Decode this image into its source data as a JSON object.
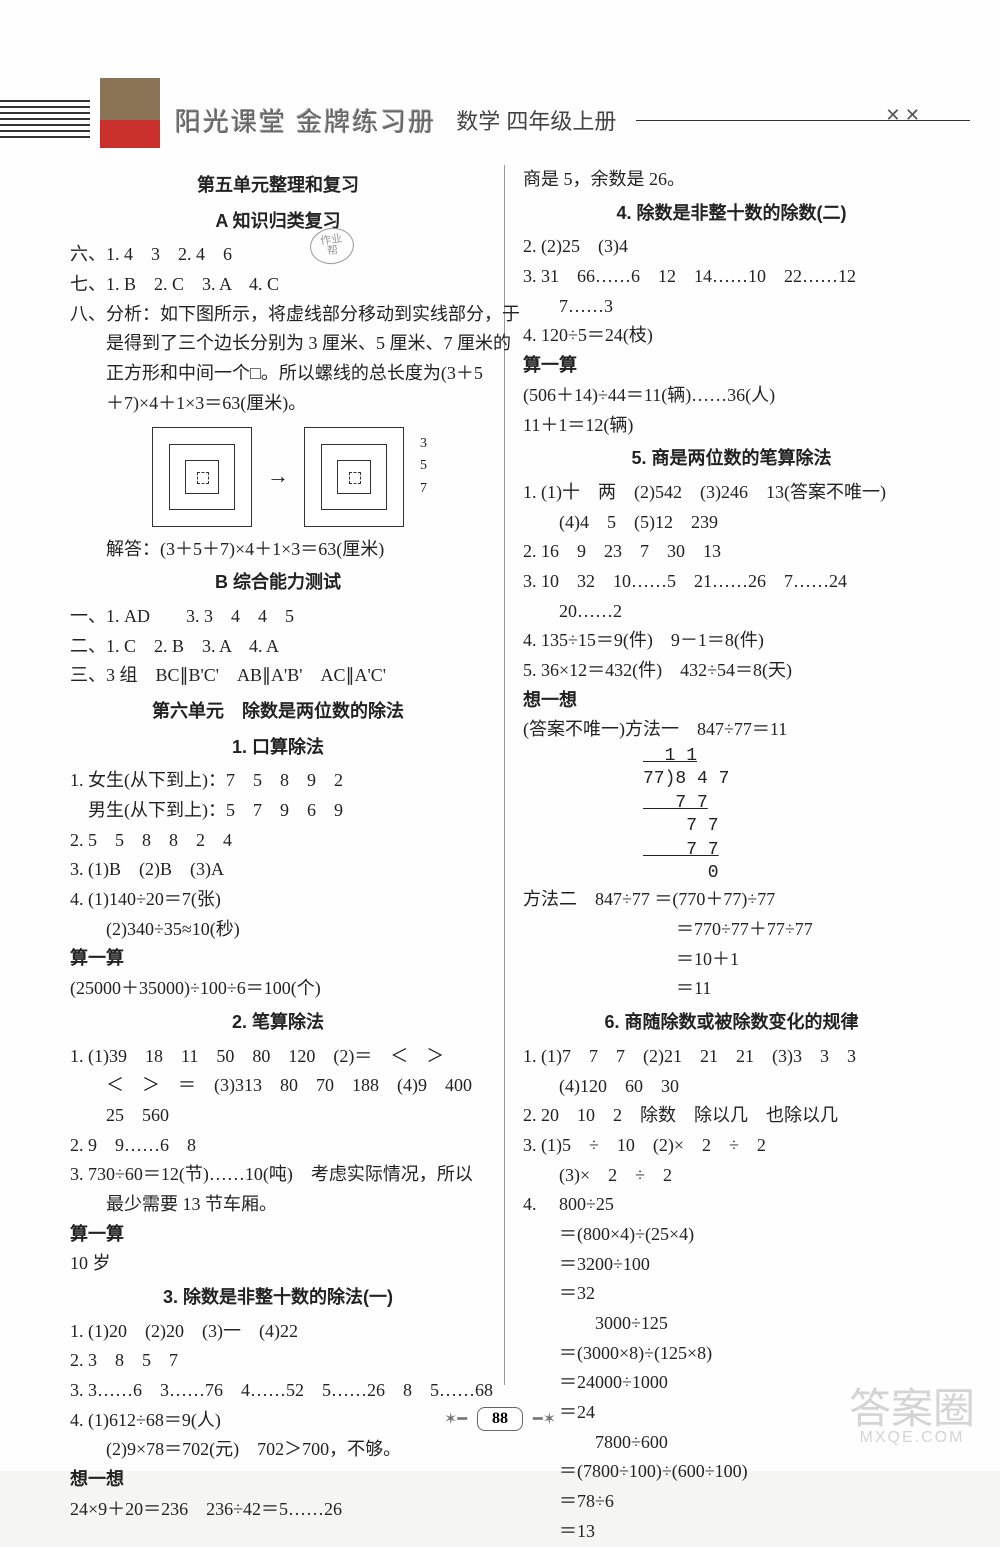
{
  "header": {
    "series": "阳光课堂  金牌练习册",
    "subject": "数学  四年级上册",
    "birds": "✕  ✕"
  },
  "pageNumber": "88",
  "watermark": {
    "main": "答案圈",
    "sub": "MXQE.COM"
  },
  "left": {
    "t1": "第五单元整理和复习",
    "t2": "A  知识归类复习",
    "l1": "六、1. 4　3　2. 4　6",
    "l2": "七、1. B　2. C　3. A　4. C",
    "l3": "八、分析：如下图所示，将虚线部分移动到实线部分，于",
    "l4": "是得到了三个边长分别为 3 厘米、5 厘米、7 厘米的",
    "l5": "正方形和中间一个□。所以螺线的总长度为(3＋5",
    "l6": "＋7)×4＋1×3＝63(厘米)。",
    "diag_labels": {
      "a": "3",
      "b": "5",
      "c": "7"
    },
    "l7": "解答：(3＋5＋7)×4＋1×3＝63(厘米)",
    "t3": "B  综合能力测试",
    "l8": "一、1. AD　　3. 3　4　4　5",
    "l9": "二、1. C　2. B　3. A　4. A",
    "l10": "三、3 组　BC∥B'C'　AB∥A'B'　AC∥A'C'",
    "t4": "第六单元　除数是两位数的除法",
    "t5": "1. 口算除法",
    "l11": "1. 女生(从下到上)：7　5　8　9　2",
    "l12": "　男生(从下到上)：5　7　9　6　9",
    "l13": "2. 5　5　8　8　2　4",
    "l14": "3. (1)B　(2)B　(3)A",
    "l15": "4. (1)140÷20＝7(张)",
    "l16": "(2)340÷35≈10(秒)",
    "l17": "算一算",
    "l18": "(25000＋35000)÷100÷6＝100(个)",
    "t6": "2. 笔算除法",
    "l19": "1. (1)39　18　11　50　80　120　(2)＝　＜　＞",
    "l20": "＜　＞　＝　(3)313　80　70　188　(4)9　400",
    "l21": "25　560",
    "l22": "2. 9　9……6　8",
    "l23": "3. 730÷60＝12(节)……10(吨)　考虑实际情况，所以",
    "l24": "最少需要 13 节车厢。",
    "l25": "算一算",
    "l26": "10 岁",
    "t7": "3. 除数是非整十数的除法(一)",
    "l27": "1. (1)20　(2)20　(3)一　(4)22",
    "l28": "2. 3　8　5　7",
    "l29": "3. 3……6　3……76　4……52　5……26　8　5……68",
    "l30": "4. (1)612÷68＝9(人)",
    "l31": "(2)9×78＝702(元)　702＞700，不够。",
    "l32": "想一想",
    "l33": "24×9＋20＝236　236÷42＝5……26"
  },
  "right": {
    "r0": "商是 5，余数是 26。",
    "t1": "4. 除数是非整十数的除数(二)",
    "r1": "2. (2)25　(3)4",
    "r2": "3. 31　66……6　12　14……10　22……12",
    "r3": "7……3",
    "r4": "4. 120÷5＝24(枝)",
    "r5": "算一算",
    "r6": "(506＋14)÷44＝11(辆)……36(人)",
    "r7": "11＋1＝12(辆)",
    "t2": "5. 商是两位数的笔算除法",
    "r8": "1. (1)十　两　(2)542　(3)246　13(答案不唯一)",
    "r9": "(4)4　5　(5)12　239",
    "r10": "2. 16　9　23　7　30　13",
    "r11": "3. 10　32　10……5　21……26　7……24",
    "r12": "20……2",
    "r13": "4. 135÷15＝9(件)　9－1＝8(件)",
    "r14": "5. 36×12＝432(件)　432÷54＝8(天)",
    "r15": "想一想",
    "r16": "(答案不唯一)方法一　847÷77＝11",
    "ld": {
      "q": "  1 1",
      "div": "77)8 4 7",
      "a": "   7 7",
      "b": "    7 7",
      "c": "    7 7",
      "d": "      0"
    },
    "r17": "方法二　847÷77 ＝(770＋77)÷77",
    "r18": "＝770÷77＋77÷77",
    "r19": "＝10＋1",
    "r20": "＝11",
    "t3": "6. 商随除数或被除数变化的规律",
    "r21": "1. (1)7　7　7　(2)21　21　21　(3)3　3　3",
    "r22": "(4)120　60　30",
    "r23": "2. 20　10　2　除数　除以几　也除以几",
    "r24": "3. (1)5　÷　10　(2)×　2　÷　2",
    "r25": "(3)×　2　÷　2",
    "r26": "4. 　800÷25",
    "r27": "＝(800×4)÷(25×4)",
    "r28": "＝3200÷100",
    "r29": "＝32",
    "r30": "　3000÷125",
    "r31": "＝(3000×8)÷(125×8)",
    "r32": "＝24000÷1000",
    "r33": "＝24",
    "r34": "　7800÷600",
    "r35": "＝(7800÷100)÷(600÷100)",
    "r36": "＝78÷6",
    "r37": "＝13"
  }
}
